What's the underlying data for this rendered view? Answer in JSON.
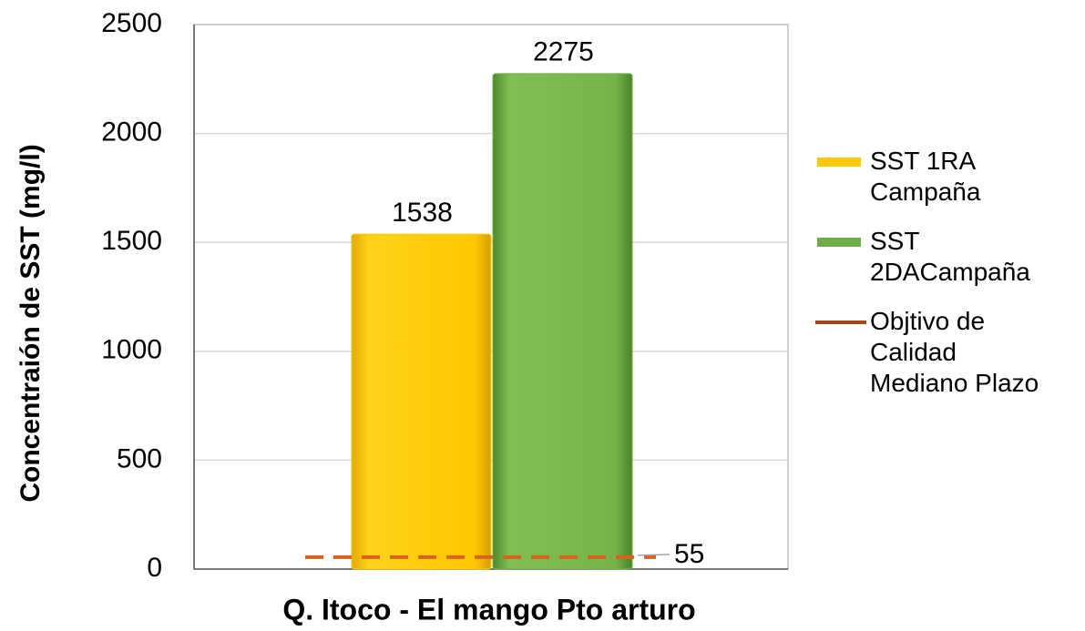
{
  "chart_data": {
    "type": "bar",
    "categories": [
      "Q. Itoco - El mango Pto arturo"
    ],
    "y_label": "Concentraión de SST (mg/l)",
    "series": [
      {
        "name": "SST 1RA Campaña",
        "color": "#ffc800",
        "values": [
          1538
        ]
      },
      {
        "name": "SST 2DACampaña",
        "color": "#6fae44",
        "values": [
          2275
        ]
      },
      {
        "name": "Objtivo de Calidad Mediano Plazo",
        "color": "#d9631e",
        "type": "line",
        "values": [
          55
        ]
      }
    ],
    "ylim": [
      0,
      2500
    ],
    "yticks": [
      0,
      500,
      1000,
      1500,
      2000,
      2500
    ],
    "grid": true,
    "legend": "right"
  }
}
